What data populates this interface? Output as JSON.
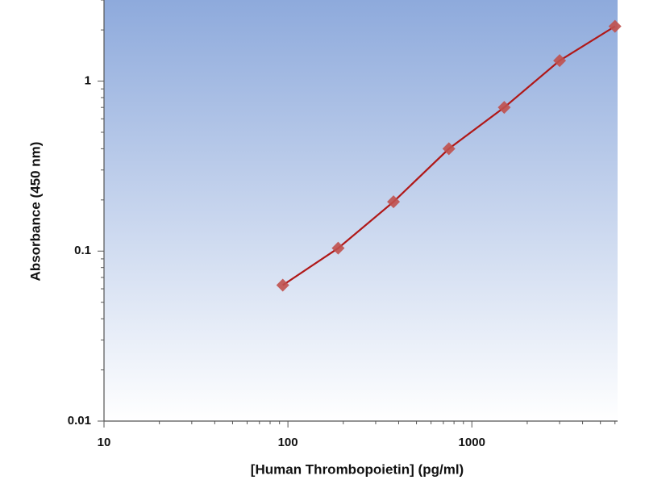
{
  "chart_data": {
    "type": "line",
    "x_label": "[Human Thrombopoietin] (pg/ml)",
    "y_label": "Absorbance (450 nm)",
    "x": [
      93.75,
      187.5,
      375,
      750,
      1500,
      3000,
      6000
    ],
    "series": [
      {
        "color": "#c0504d",
        "line_color": "#b01818",
        "values": [
          0.063,
          0.104,
          0.195,
          0.4,
          0.7,
          1.32,
          2.1
        ]
      }
    ],
    "xlim": [
      10,
      6200
    ],
    "ylim": [
      0.01,
      3
    ],
    "xticks": [
      10,
      100,
      1000
    ],
    "yticks": [
      0.01,
      0.1,
      1
    ],
    "xticks_minor": [
      20,
      30,
      40,
      50,
      60,
      70,
      80,
      90,
      200,
      300,
      400,
      500,
      600,
      700,
      800,
      900,
      2000,
      3000,
      4000,
      5000,
      6000
    ],
    "yticks_minor": [
      0.02,
      0.03,
      0.04,
      0.05,
      0.06,
      0.07,
      0.08,
      0.09,
      0.2,
      0.3,
      0.4,
      0.5,
      0.6,
      0.7,
      0.8,
      0.9,
      2,
      3
    ],
    "xscale": "log",
    "yscale": "log"
  }
}
